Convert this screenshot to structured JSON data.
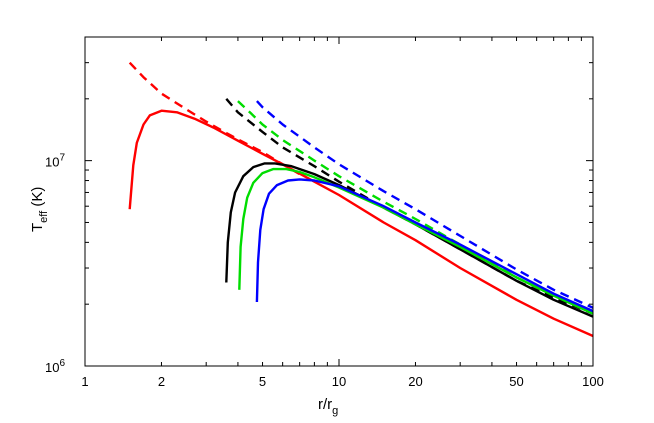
{
  "chart_data": {
    "type": "line",
    "title": "",
    "xlabel": {
      "main": "r/r",
      "sub": "g"
    },
    "ylabel": {
      "main": "T",
      "sub": "eff",
      "unit": " (K)"
    },
    "xscale": "log",
    "yscale": "log",
    "xlim": [
      1,
      100
    ],
    "ylim": [
      1000000,
      40000000
    ],
    "grid": false,
    "legend": "none",
    "x_ticks": [
      {
        "value": 1,
        "label": "1"
      },
      {
        "value": 2,
        "label": "2"
      },
      {
        "value": 5,
        "label": "5"
      },
      {
        "value": 10,
        "label": "10"
      },
      {
        "value": 20,
        "label": "20"
      },
      {
        "value": 50,
        "label": "50"
      },
      {
        "value": 100,
        "label": "100"
      }
    ],
    "y_ticks": [
      {
        "value": 1000000,
        "base": "10",
        "exp": "6"
      },
      {
        "value": 10000000,
        "base": "10",
        "exp": "7"
      }
    ],
    "series": [
      {
        "color": "#ff0000",
        "dash": "solid",
        "x": [
          1.5,
          1.55,
          1.6,
          1.7,
          1.8,
          2.0,
          2.3,
          2.7,
          3.2,
          4.0,
          5.0,
          6.0,
          8.0,
          10,
          15,
          20,
          30,
          50,
          70,
          100
        ],
        "y": [
          5800000.0,
          9500000.0,
          12200000.0,
          15000000.0,
          16600000.0,
          17500000.0,
          17200000.0,
          16000000.0,
          14500000.0,
          12500000.0,
          10800000.0,
          9600000.0,
          7900000.0,
          6800000.0,
          5000000.0,
          4100000.0,
          3000000.0,
          2100000.0,
          1700000.0,
          1400000.0
        ]
      },
      {
        "color": "#ff0000",
        "dash": "dashed",
        "x": [
          1.5,
          1.7,
          2.0,
          2.5,
          3.0,
          3.5,
          4.0,
          5.0,
          6.0,
          7.0
        ],
        "y": [
          30000000.0,
          25500000.0,
          21200000.0,
          17800000.0,
          15500000.0,
          13900000.0,
          12700000.0,
          11000000.0,
          9600000.0,
          8600000.0
        ]
      },
      {
        "color": "#000000",
        "dash": "solid",
        "x": [
          3.6,
          3.65,
          3.75,
          3.9,
          4.2,
          4.6,
          5.1,
          5.6,
          6.5,
          8.0,
          10,
          15,
          20,
          30,
          50,
          70,
          100
        ],
        "y": [
          2550000.0,
          4000000.0,
          5600000.0,
          7000000.0,
          8400000.0,
          9300000.0,
          9700000.0,
          9700000.0,
          9400000.0,
          8600000.0,
          7600000.0,
          5900000.0,
          4900000.0,
          3700000.0,
          2600000.0,
          2100000.0,
          1740000.0
        ]
      },
      {
        "color": "#000000",
        "dash": "dashed",
        "x": [
          3.6,
          4.0,
          5.0,
          6.0,
          8.0,
          10,
          15,
          20,
          30,
          50,
          70,
          100
        ],
        "y": [
          20000000.0,
          17200000.0,
          13800000.0,
          11600000.0,
          9400000.0,
          7900000.0,
          5900000.0,
          4900000.0,
          3700000.0,
          2600000.0,
          2150000.0,
          1800000.0
        ]
      },
      {
        "color": "#00dd00",
        "dash": "solid",
        "x": [
          4.05,
          4.1,
          4.2,
          4.35,
          4.6,
          5.0,
          5.5,
          6.2,
          7.0,
          8.0,
          10,
          15,
          20,
          30,
          50,
          70,
          100
        ],
        "y": [
          2350000.0,
          3800000.0,
          5200000.0,
          6600000.0,
          7800000.0,
          8700000.0,
          9100000.0,
          9100000.0,
          8800000.0,
          8300000.0,
          7400000.0,
          5900000.0,
          4900000.0,
          3800000.0,
          2700000.0,
          2200000.0,
          1800000.0
        ]
      },
      {
        "color": "#00dd00",
        "dash": "dashed",
        "x": [
          4.0,
          4.5,
          5.0,
          6.0,
          8.0,
          10,
          15,
          20,
          30,
          50,
          70,
          100
        ],
        "y": [
          19500000.0,
          17000000.0,
          15000000.0,
          12600000.0,
          10000000.0,
          8400000.0,
          6300000.0,
          5200000.0,
          3900000.0,
          2700000.0,
          2200000.0,
          1850000.0
        ]
      },
      {
        "color": "#0000ff",
        "dash": "solid",
        "x": [
          4.75,
          4.8,
          4.9,
          5.05,
          5.3,
          5.7,
          6.3,
          7.0,
          8.0,
          10,
          15,
          20,
          30,
          50,
          70,
          100
        ],
        "y": [
          2050000.0,
          3200000.0,
          4600000.0,
          5800000.0,
          6900000.0,
          7600000.0,
          8000000.0,
          8100000.0,
          8000000.0,
          7500000.0,
          6000000.0,
          5000000.0,
          3900000.0,
          2800000.0,
          2250000.0,
          1850000.0
        ]
      },
      {
        "color": "#0000ff",
        "dash": "dashed",
        "x": [
          4.75,
          5.0,
          6.0,
          8.0,
          10,
          15,
          20,
          30,
          50,
          70,
          100
        ],
        "y": [
          19500000.0,
          18200000.0,
          15000000.0,
          11600000.0,
          9600000.0,
          7100000.0,
          5800000.0,
          4300000.0,
          2950000.0,
          2350000.0,
          1920000.0
        ]
      }
    ]
  }
}
